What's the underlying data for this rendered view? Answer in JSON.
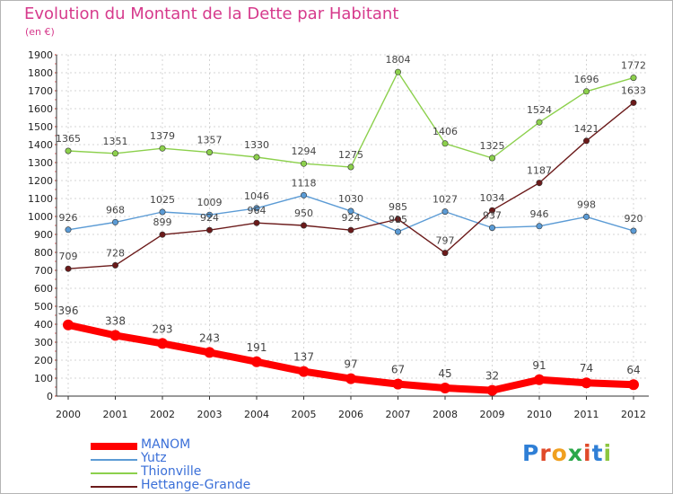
{
  "title": "Evolution du Montant de la Dette par Habitant",
  "subtitle": "(en €)",
  "brand": {
    "letters": [
      {
        "ch": "P",
        "color": "#2f7fd6"
      },
      {
        "ch": "r",
        "color": "#e04a2a"
      },
      {
        "ch": "o",
        "color": "#f0a020"
      },
      {
        "ch": "x",
        "color": "#2aa84a"
      },
      {
        "ch": "i",
        "color": "#e04a2a"
      },
      {
        "ch": "t",
        "color": "#2f7fd6"
      },
      {
        "ch": "i",
        "color": "#8cc63f"
      }
    ]
  },
  "chart_data": {
    "type": "line",
    "title": "Evolution du Montant de la Dette par Habitant",
    "subtitle": "(en €)",
    "xlabel": "",
    "ylabel": "",
    "x": [
      "2000",
      "2001",
      "2002",
      "2003",
      "2004",
      "2005",
      "2006",
      "2007",
      "2008",
      "2009",
      "2010",
      "2011",
      "2012"
    ],
    "ylim": [
      0,
      1900
    ],
    "yticks": [
      0,
      100,
      200,
      300,
      400,
      500,
      600,
      700,
      800,
      900,
      1000,
      1100,
      1200,
      1300,
      1400,
      1500,
      1600,
      1700,
      1800,
      1900
    ],
    "grid": true,
    "legend_position": "bottom-left",
    "series": [
      {
        "name": "MANOM",
        "color": "#ff0000",
        "values": [
          396,
          338,
          293,
          243,
          191,
          137,
          97,
          67,
          45,
          32,
          91,
          74,
          64
        ]
      },
      {
        "name": "Yutz",
        "color": "#5b9bd5",
        "values": [
          926,
          968,
          1025,
          1009,
          1046,
          1118,
          1030,
          915,
          1027,
          937,
          946,
          998,
          920
        ]
      },
      {
        "name": "Thionville",
        "color": "#8cd04c",
        "values": [
          1365,
          1351,
          1379,
          1357,
          1330,
          1294,
          1275,
          1804,
          1406,
          1325,
          1524,
          1696,
          1772
        ]
      },
      {
        "name": "Hettange-Grande",
        "color": "#6b1a1a",
        "values": [
          709,
          728,
          899,
          924,
          964,
          950,
          924,
          985,
          797,
          1034,
          1187,
          1421,
          1633
        ]
      }
    ]
  }
}
